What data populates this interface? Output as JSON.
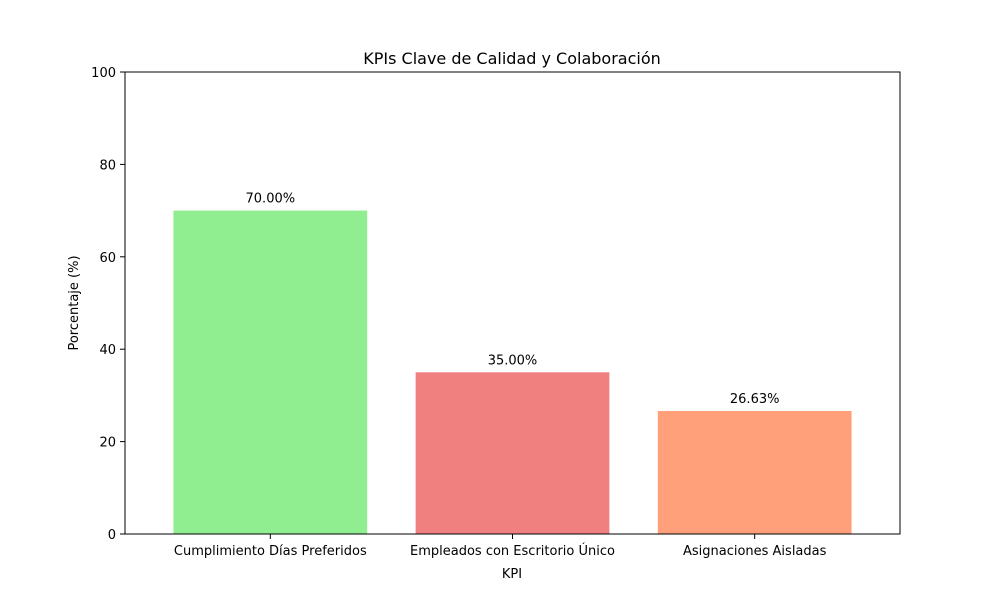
{
  "chart_data": {
    "type": "bar",
    "title": "KPIs Clave de Calidad y Colaboración",
    "xlabel": "KPI",
    "ylabel": "Porcentaje (%)",
    "categories": [
      "Cumplimiento Días Preferidos",
      "Empleados con Escritorio Único",
      "Asignaciones Aisladas"
    ],
    "values": [
      70.0,
      35.0,
      26.63
    ],
    "data_labels": [
      "70.00%",
      "35.00%",
      "26.63%"
    ],
    "colors": [
      "#90ee90",
      "#f08080",
      "#ffa07a"
    ],
    "ylim": [
      0,
      100
    ],
    "yticks": [
      0,
      20,
      40,
      60,
      80,
      100
    ],
    "grid": false,
    "legend": "none"
  }
}
